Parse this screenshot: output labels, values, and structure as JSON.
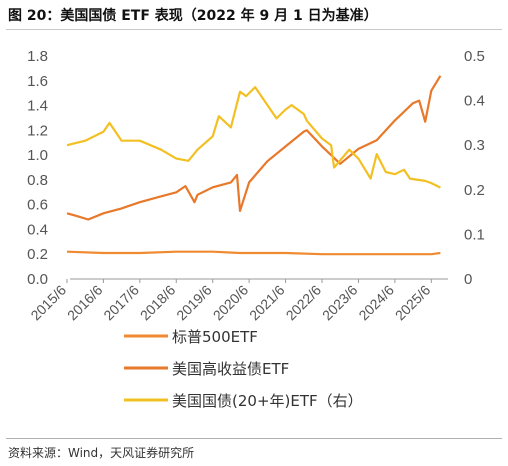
{
  "title": "图 20：美国国债 ETF 表现（2022 年 9 月 1 日为基准）",
  "source": "资料来源：Wind，天风证券研究所",
  "colors": {
    "sp500": "#f08a30",
    "high_yield": "#e8782a",
    "treasury": "#f2c023"
  },
  "chart_data": {
    "type": "line",
    "x_ticks": [
      "2015/6",
      "2016/6",
      "2017/6",
      "2018/6",
      "2019/6",
      "2020/6",
      "2021/6",
      "2022/6",
      "2023/6",
      "2024/6",
      "2025/6"
    ],
    "ylim_left": [
      0,
      1.8
    ],
    "yticks_left": [
      "0.0",
      "0.2",
      "0.4",
      "0.6",
      "0.8",
      "1.0",
      "1.2",
      "1.4",
      "1.6",
      "1.8"
    ],
    "ylim_right": [
      0,
      0.5
    ],
    "yticks_right": [
      "0",
      "0.1",
      "0.2",
      "0.3",
      "0.4",
      "0.5"
    ],
    "legend_position": "bottom",
    "grid": false,
    "series": [
      {
        "name": "标普500ETF",
        "axis": "left",
        "x": [
          "2015-06",
          "2016-06",
          "2017-06",
          "2018-06",
          "2019-06",
          "2020-03",
          "2020-06",
          "2021-06",
          "2022-06",
          "2023-06",
          "2024-06",
          "2025-06",
          "2025-09"
        ],
        "values": [
          0.22,
          0.21,
          0.21,
          0.22,
          0.22,
          0.21,
          0.21,
          0.21,
          0.2,
          0.2,
          0.2,
          0.2,
          0.21
        ]
      },
      {
        "name": "美国高收益债ETF",
        "axis": "left",
        "x": [
          "2015-06",
          "2015-09",
          "2016-01",
          "2016-06",
          "2016-12",
          "2017-06",
          "2017-12",
          "2018-06",
          "2018-09",
          "2018-12",
          "2019-01",
          "2019-06",
          "2019-12",
          "2020-02",
          "2020-03",
          "2020-06",
          "2020-12",
          "2021-06",
          "2021-12",
          "2022-01",
          "2022-06",
          "2022-09",
          "2022-12",
          "2023-06",
          "2023-12",
          "2024-06",
          "2024-12",
          "2025-02",
          "2025-04",
          "2025-06",
          "2025-09"
        ],
        "values": [
          0.53,
          0.51,
          0.48,
          0.53,
          0.57,
          0.62,
          0.66,
          0.7,
          0.75,
          0.62,
          0.68,
          0.74,
          0.78,
          0.84,
          0.55,
          0.78,
          0.95,
          1.07,
          1.19,
          1.2,
          1.07,
          1.0,
          0.93,
          1.05,
          1.12,
          1.28,
          1.42,
          1.44,
          1.27,
          1.52,
          1.64
        ]
      },
      {
        "name": "美国国债(20+年)ETF（右）",
        "axis": "right",
        "x": [
          "2015-06",
          "2015-12",
          "2016-06",
          "2016-08",
          "2016-12",
          "2017-06",
          "2018-01",
          "2018-06",
          "2018-10",
          "2019-01",
          "2019-06",
          "2019-08",
          "2019-12",
          "2020-03",
          "2020-05",
          "2020-08",
          "2021-03",
          "2021-06",
          "2021-08",
          "2021-12",
          "2022-01",
          "2022-06",
          "2022-09",
          "2022-10",
          "2023-03",
          "2023-06",
          "2023-10",
          "2023-12",
          "2024-03",
          "2024-06",
          "2024-09",
          "2024-11",
          "2025-04",
          "2025-06",
          "2025-09"
        ],
        "values": [
          0.3,
          0.31,
          0.33,
          0.35,
          0.31,
          0.31,
          0.29,
          0.27,
          0.265,
          0.29,
          0.32,
          0.365,
          0.34,
          0.42,
          0.41,
          0.43,
          0.36,
          0.38,
          0.39,
          0.37,
          0.355,
          0.315,
          0.3,
          0.25,
          0.29,
          0.27,
          0.225,
          0.28,
          0.24,
          0.235,
          0.245,
          0.225,
          0.22,
          0.215,
          0.205
        ]
      }
    ]
  }
}
